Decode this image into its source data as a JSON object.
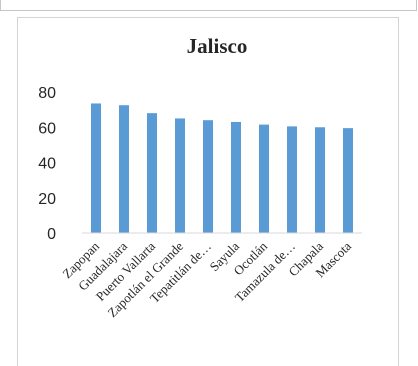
{
  "chart_data": {
    "type": "bar",
    "title": "Jalisco",
    "xlabel": "",
    "ylabel": "",
    "categories": [
      "Zapopan",
      "Guadalajara",
      "Puerto Vallarta",
      "Zapotlán el Grande",
      "Tepatitlán de…",
      "Sayula",
      "Ocotlán",
      "Tamazula de…",
      "Chapala",
      "Mascota"
    ],
    "values": [
      73.5,
      72.5,
      68,
      65,
      64,
      63,
      61.5,
      60.5,
      60,
      59.5
    ],
    "ylim": [
      0,
      80
    ],
    "yticks": [
      0,
      20,
      40,
      60,
      80
    ],
    "grid": false,
    "legend": "none",
    "bar_color": "#5b9bd5"
  }
}
